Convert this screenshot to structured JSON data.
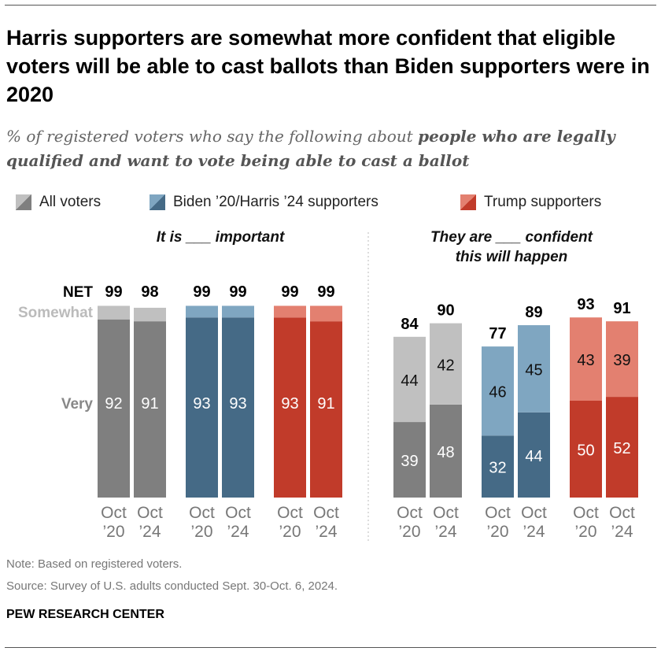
{
  "title": "Harris supporters are somewhat more confident that eligible voters will be able to cast ballots than Biden supporters were in 2020",
  "subtitle_plain": "% of registered voters who say the following about ",
  "subtitle_bold": "people who are legally qualified and want to vote being able to cast a ballot",
  "legend": [
    {
      "label": "All voters",
      "very": "#7f7f7f",
      "somewhat": "#c0c0c0"
    },
    {
      "label": "Biden ’20/Harris ’24 supporters",
      "very": "#456a86",
      "somewhat": "#7fa6c1"
    },
    {
      "label": "Trump supporters",
      "very": "#c13b2a",
      "somewhat": "#e38070"
    }
  ],
  "note": "Note: Based on registered voters.",
  "source": "Source: Survey of U.S. adults conducted Sept. 30-Oct. 6, 2024.",
  "brand": "PEW RESEARCH CENTER",
  "chart_data": [
    {
      "type": "bar",
      "stacked": true,
      "title": "It is ___ important",
      "row_labels": {
        "net": "NET",
        "somewhat": "Somewhat",
        "very": "Very"
      },
      "groups": [
        "All voters",
        "Biden ’20/Harris ’24 supporters",
        "Trump supporters"
      ],
      "categories": [
        "Oct ’20",
        "Oct ’24"
      ],
      "series": [
        {
          "name": "Very",
          "values": [
            [
              92,
              91
            ],
            [
              93,
              93
            ],
            [
              93,
              91
            ]
          ]
        },
        {
          "name": "Somewhat",
          "values": [
            [
              7,
              7
            ],
            [
              6,
              6
            ],
            [
              6,
              8
            ]
          ]
        }
      ],
      "net": [
        [
          99,
          98
        ],
        [
          99,
          99
        ],
        [
          99,
          99
        ]
      ],
      "show_segment_labels": {
        "Very": true,
        "Somewhat": false
      },
      "ylim": [
        0,
        100
      ]
    },
    {
      "type": "bar",
      "stacked": true,
      "title": "They are ___ confident this will happen",
      "groups": [
        "All voters",
        "Biden ’20/Harris ’24 supporters",
        "Trump supporters"
      ],
      "categories": [
        "Oct ’20",
        "Oct ’24"
      ],
      "series": [
        {
          "name": "Very",
          "values": [
            [
              39,
              48
            ],
            [
              32,
              44
            ],
            [
              50,
              52
            ]
          ]
        },
        {
          "name": "Somewhat",
          "values": [
            [
              44,
              42
            ],
            [
              46,
              45
            ],
            [
              43,
              39
            ]
          ]
        }
      ],
      "net": [
        [
          84,
          90
        ],
        [
          77,
          89
        ],
        [
          93,
          91
        ]
      ],
      "show_segment_labels": {
        "Very": true,
        "Somewhat": true
      },
      "ylim": [
        0,
        100
      ]
    }
  ]
}
